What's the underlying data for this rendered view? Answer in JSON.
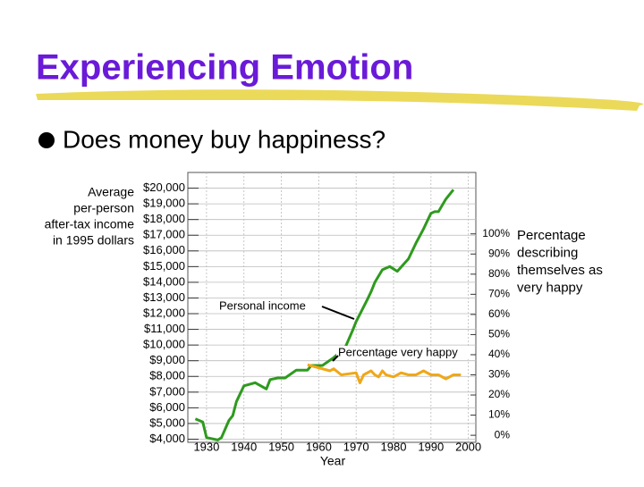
{
  "title": "Experiencing Emotion",
  "bullet": "Does money buy happiness?",
  "chart_data": {
    "type": "line",
    "y_label": [
      "Average",
      "per-person",
      "after-tax income",
      "in 1995 dollars"
    ],
    "y2_label": [
      "Percentage",
      "describing",
      "themselves as",
      "very happy"
    ],
    "x_label": "Year",
    "annotations": [
      "Personal income",
      "Percentage very happy"
    ],
    "xlim": [
      1925,
      2002
    ],
    "xticks": [
      1930,
      1940,
      1950,
      1960,
      1970,
      1980,
      1990,
      2000
    ],
    "ylim": [
      3800,
      21000
    ],
    "yticks": [
      {
        "value": 4000,
        "label": "$4,000"
      },
      {
        "value": 5000,
        "label": "$5,000"
      },
      {
        "value": 6000,
        "label": "$6,000"
      },
      {
        "value": 7000,
        "label": "$7,000"
      },
      {
        "value": 8000,
        "label": "$8,000"
      },
      {
        "value": 9000,
        "label": "$9,000"
      },
      {
        "value": 10000,
        "label": "$10,000"
      },
      {
        "value": 11000,
        "label": "$11,000"
      },
      {
        "value": 12000,
        "label": "$12,000"
      },
      {
        "value": 13000,
        "label": "$13,000"
      },
      {
        "value": 14000,
        "label": "$14,000"
      },
      {
        "value": 15000,
        "label": "$15,000"
      },
      {
        "value": 16000,
        "label": "$16,000"
      },
      {
        "value": 17000,
        "label": "$17,000"
      },
      {
        "value": 18000,
        "label": "$18,000"
      },
      {
        "value": 19000,
        "label": "$19,000"
      },
      {
        "value": 20000,
        "label": "$20,000"
      }
    ],
    "y2lim": [
      -3.5,
      130.5
    ],
    "y2ticks": [
      {
        "value": 0,
        "label": "0%"
      },
      {
        "value": 10,
        "label": "10%"
      },
      {
        "value": 20,
        "label": "20%"
      },
      {
        "value": 30,
        "label": "30%"
      },
      {
        "value": 40,
        "label": "40%"
      },
      {
        "value": 50,
        "label": "50%"
      },
      {
        "value": 60,
        "label": "60%"
      },
      {
        "value": 70,
        "label": "70%"
      },
      {
        "value": 80,
        "label": "80%"
      },
      {
        "value": 90,
        "label": "90%"
      },
      {
        "value": 100,
        "label": "100%"
      }
    ],
    "grid": true,
    "series": [
      {
        "name": "Personal income",
        "color": "#2e9a1e",
        "x": [
          1927,
          1929,
          1930,
          1933,
          1934,
          1936,
          1937,
          1938,
          1940,
          1943,
          1946,
          1947,
          1949,
          1951,
          1954,
          1957,
          1958,
          1961,
          1964,
          1967,
          1969,
          1970,
          1973,
          1974,
          1975,
          1977,
          1979,
          1981,
          1984,
          1986,
          1988,
          1990,
          1991,
          1992,
          1994,
          1996
        ],
        "values": [
          5300,
          5100,
          4100,
          3950,
          4100,
          5200,
          5500,
          6400,
          7400,
          7600,
          7200,
          7800,
          7900,
          7900,
          8400,
          8400,
          8700,
          8700,
          9200,
          9800,
          10900,
          11500,
          12900,
          13400,
          14000,
          14800,
          15000,
          14700,
          15500,
          16500,
          17400,
          18400,
          18500,
          18500,
          19300,
          19900
        ]
      },
      {
        "name": "Percentage very happy",
        "color": "#f0a818",
        "axis": "y2",
        "x": [
          1957,
          1959,
          1963,
          1964,
          1966,
          1970,
          1971,
          1972,
          1974,
          1975,
          1976,
          1977,
          1978,
          1980,
          1982,
          1984,
          1986,
          1988,
          1990,
          1992,
          1994,
          1996,
          1998
        ],
        "values": [
          35,
          34,
          32,
          33,
          30,
          31,
          26,
          30,
          32,
          30,
          29,
          32,
          30,
          29,
          31,
          30,
          30,
          32,
          30,
          30,
          28,
          30,
          30
        ]
      }
    ]
  }
}
